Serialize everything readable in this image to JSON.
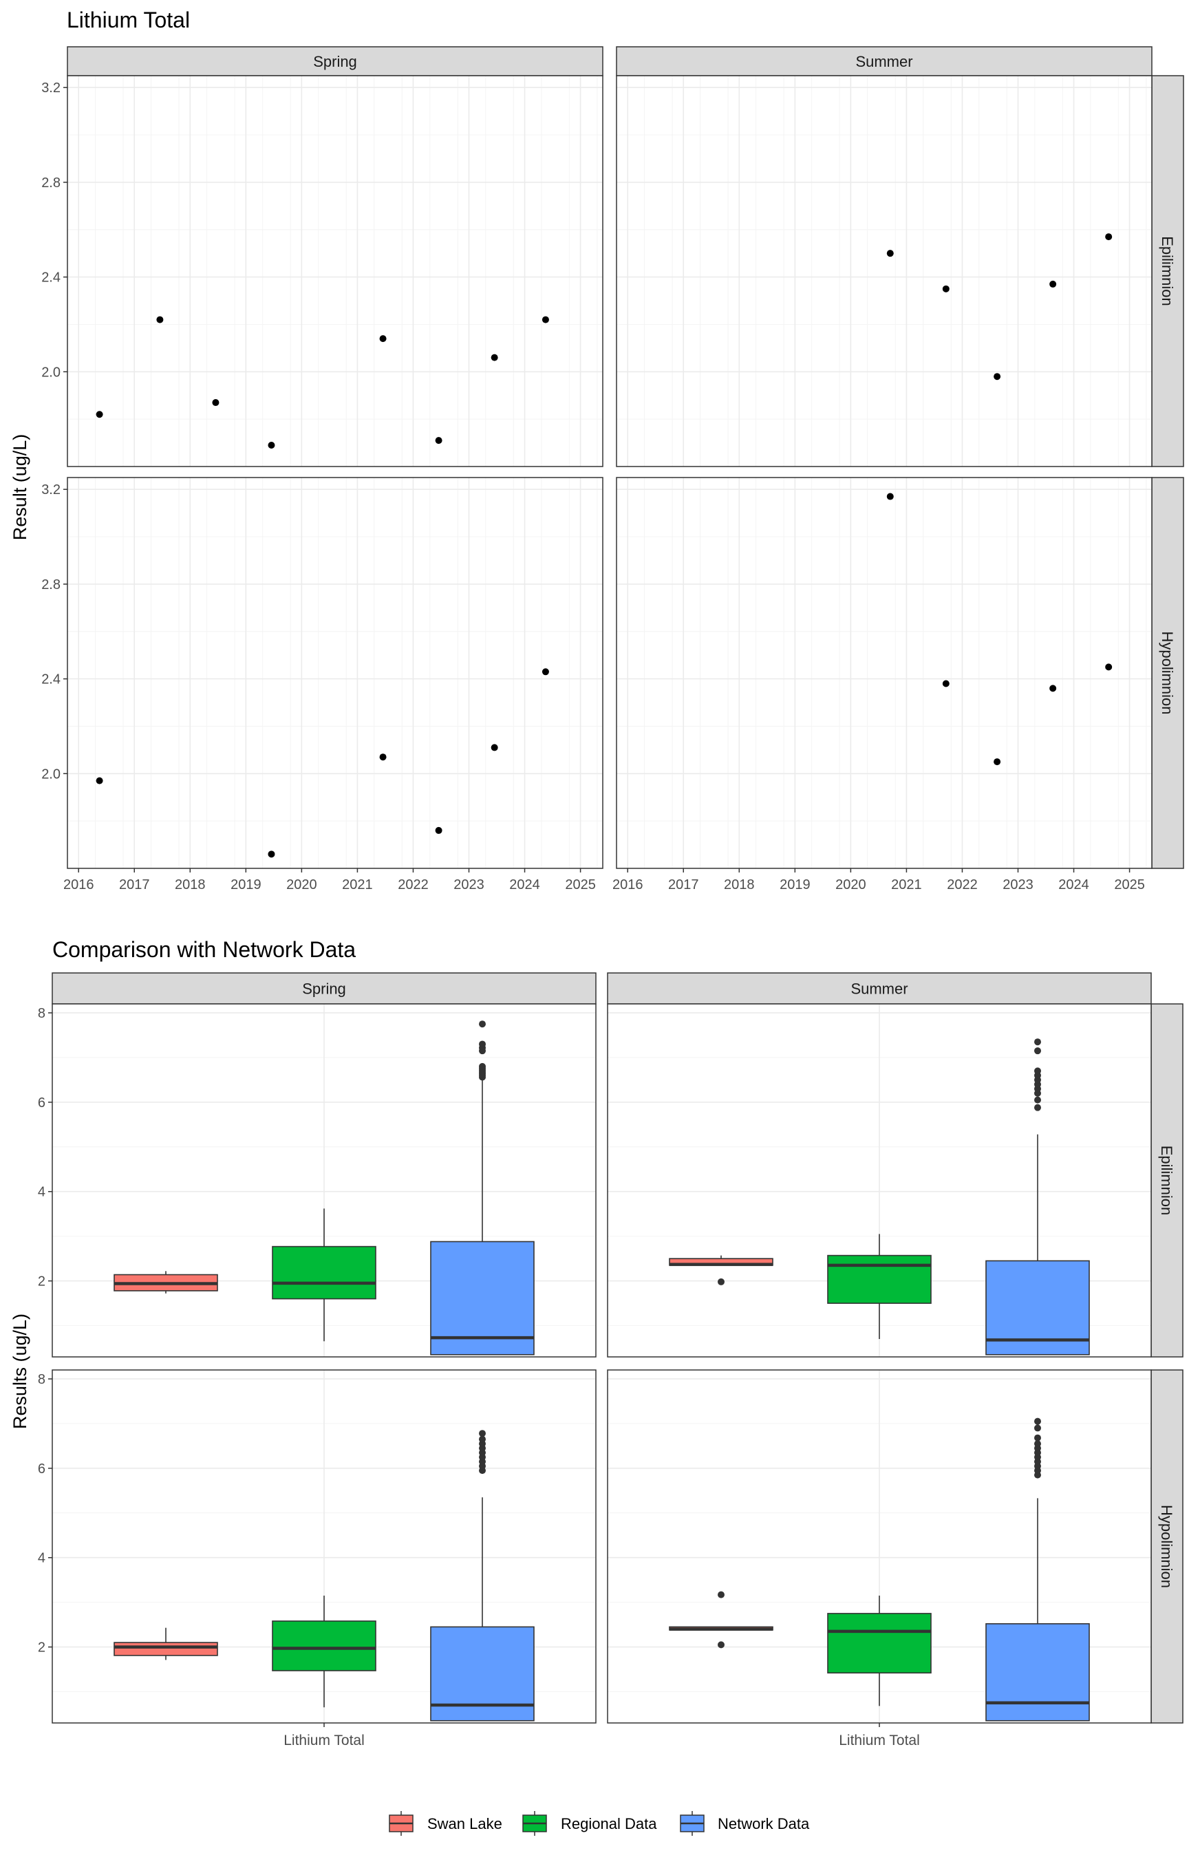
{
  "chart_data": [
    {
      "type": "scatter",
      "title": "Lithium Total",
      "ylabel": "Result (ug/L)",
      "xlabel": "",
      "facet_columns": [
        "Spring",
        "Summer"
      ],
      "facet_rows": [
        "Epilimnion",
        "Hypolimnion"
      ],
      "xlim": [
        2015.8,
        2025.4
      ],
      "ylim": [
        1.6,
        3.25
      ],
      "x_ticks": [
        "2016",
        "2017",
        "2018",
        "2019",
        "2020",
        "2021",
        "2022",
        "2023",
        "2024",
        "2025"
      ],
      "y_ticks": [
        "2.0",
        "2.4",
        "2.8",
        "3.2"
      ],
      "grid": true,
      "series": [
        {
          "column": "Spring",
          "row": "Epilimnion",
          "x": [
            "2016-05",
            "2017-06",
            "2018-06",
            "2019-06",
            "2021-06",
            "2022-06",
            "2023-06",
            "2024-05"
          ],
          "y": [
            1.82,
            2.22,
            1.87,
            1.69,
            2.14,
            1.71,
            2.06,
            2.22
          ]
        },
        {
          "column": "Summer",
          "row": "Epilimnion",
          "x": [
            "2020-09",
            "2021-09",
            "2022-08",
            "2023-08",
            "2024-08"
          ],
          "y": [
            2.5,
            2.35,
            1.98,
            2.37,
            2.57
          ]
        },
        {
          "column": "Spring",
          "row": "Hypolimnion",
          "x": [
            "2016-05",
            "2019-06",
            "2021-06",
            "2022-06",
            "2023-06",
            "2024-05"
          ],
          "y": [
            1.97,
            1.66,
            2.07,
            1.76,
            2.11,
            2.43
          ]
        },
        {
          "column": "Summer",
          "row": "Hypolimnion",
          "x": [
            "2020-09",
            "2021-09",
            "2022-08",
            "2023-08",
            "2024-08"
          ],
          "y": [
            3.17,
            2.38,
            2.05,
            2.36,
            2.45
          ]
        }
      ]
    },
    {
      "type": "box",
      "title": "Comparison with Network Data",
      "ylabel": "Results (ug/L)",
      "xlabel": "",
      "facet_columns": [
        "Spring",
        "Summer"
      ],
      "facet_rows": [
        "Epilimnion",
        "Hypolimnion"
      ],
      "categories": [
        "Lithium Total"
      ],
      "ylim": [
        0.3,
        8.2
      ],
      "y_ticks": [
        "2",
        "4",
        "6",
        "8"
      ],
      "grid": true,
      "legend": {
        "position": "bottom",
        "items": [
          {
            "label": "Swan Lake",
            "color": "#F8766D"
          },
          {
            "label": "Regional Data",
            "color": "#00BA38"
          },
          {
            "label": "Network Data",
            "color": "#619CFF"
          }
        ]
      },
      "series": [
        {
          "name": "Swan Lake",
          "column": "Spring",
          "row": "Epilimnion",
          "min": 1.72,
          "q1": 1.78,
          "median": 1.94,
          "q3": 2.14,
          "max": 2.22,
          "outliers": []
        },
        {
          "name": "Regional Data",
          "column": "Spring",
          "row": "Epilimnion",
          "min": 0.65,
          "q1": 1.6,
          "median": 1.95,
          "q3": 2.77,
          "max": 3.62,
          "outliers": []
        },
        {
          "name": "Network Data",
          "column": "Spring",
          "row": "Epilimnion",
          "min": 0.35,
          "q1": 0.35,
          "median": 0.73,
          "q3": 2.88,
          "max": 6.53,
          "outliers": [
            6.56,
            6.6,
            6.64,
            6.68,
            6.72,
            6.76,
            6.8,
            7.15,
            7.22,
            7.3,
            7.75
          ]
        },
        {
          "name": "Swan Lake",
          "column": "Summer",
          "row": "Epilimnion",
          "min": 2.35,
          "q1": 2.35,
          "median": 2.37,
          "q3": 2.5,
          "max": 2.57,
          "outliers": [
            1.98
          ]
        },
        {
          "name": "Regional Data",
          "column": "Summer",
          "row": "Epilimnion",
          "min": 0.7,
          "q1": 1.5,
          "median": 2.35,
          "q3": 2.57,
          "max": 3.05,
          "outliers": []
        },
        {
          "name": "Network Data",
          "column": "Summer",
          "row": "Epilimnion",
          "min": 0.35,
          "q1": 0.35,
          "median": 0.68,
          "q3": 2.45,
          "max": 5.28,
          "outliers": [
            5.88,
            6.05,
            6.2,
            6.3,
            6.4,
            6.5,
            6.6,
            6.7,
            7.15,
            7.35
          ]
        },
        {
          "name": "Swan Lake",
          "column": "Spring",
          "row": "Hypolimnion",
          "min": 1.71,
          "q1": 1.81,
          "median": 2.0,
          "q3": 2.1,
          "max": 2.43,
          "outliers": []
        },
        {
          "name": "Regional Data",
          "column": "Spring",
          "row": "Hypolimnion",
          "min": 0.65,
          "q1": 1.47,
          "median": 1.97,
          "q3": 2.58,
          "max": 3.15,
          "outliers": []
        },
        {
          "name": "Network Data",
          "column": "Spring",
          "row": "Hypolimnion",
          "min": 0.35,
          "q1": 0.35,
          "median": 0.7,
          "q3": 2.45,
          "max": 5.35,
          "outliers": [
            5.95,
            6.05,
            6.15,
            6.25,
            6.35,
            6.45,
            6.55,
            6.65,
            6.78
          ]
        },
        {
          "name": "Swan Lake",
          "column": "Summer",
          "row": "Hypolimnion",
          "min": 2.38,
          "q1": 2.38,
          "median": 2.4,
          "q3": 2.45,
          "max": 2.45,
          "outliers": [
            2.05,
            3.17
          ]
        },
        {
          "name": "Regional Data",
          "column": "Summer",
          "row": "Hypolimnion",
          "min": 0.68,
          "q1": 1.42,
          "median": 2.35,
          "q3": 2.75,
          "max": 3.15,
          "outliers": []
        },
        {
          "name": "Network Data",
          "column": "Summer",
          "row": "Hypolimnion",
          "min": 0.35,
          "q1": 0.35,
          "median": 0.75,
          "q3": 2.52,
          "max": 5.33,
          "outliers": [
            5.85,
            5.95,
            6.05,
            6.15,
            6.25,
            6.35,
            6.45,
            6.55,
            6.68,
            6.9,
            7.05
          ]
        }
      ]
    }
  ]
}
